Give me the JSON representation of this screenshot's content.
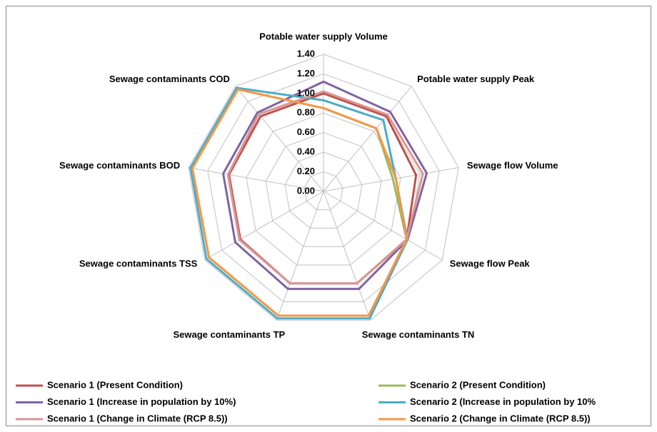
{
  "chart_data": {
    "type": "radar",
    "categories": [
      "Potable water supply Volume",
      "Potable water supply Peak",
      "Sewage flow Volume",
      "Sewage flow Peak",
      "Sewage contaminants TN",
      "Sewage contaminants TP",
      "Sewage contaminants TSS",
      "Sewage contaminants BOD",
      "Sewage contaminants COD"
    ],
    "rlim": [
      0,
      1.4
    ],
    "rticks": [
      {
        "value": 0,
        "label": "0.00"
      },
      {
        "value": 0.2,
        "label": "0.20"
      },
      {
        "value": 0.4,
        "label": "0.40"
      },
      {
        "value": 0.6,
        "label": "0.60"
      },
      {
        "value": 0.8,
        "label": "0.80"
      },
      {
        "value": 1,
        "label": "1.00"
      },
      {
        "value": 1.2,
        "label": "1.20"
      },
      {
        "value": 1.4,
        "label": "1.40"
      }
    ],
    "grid": true,
    "legend": "bottom",
    "series": [
      {
        "name": "Scenario 1 (Present Condition)",
        "color": "#c0504d",
        "values": [
          1.0,
          1.0,
          0.96,
          0.98,
          1.0,
          1.0,
          0.98,
          0.98,
          1.0
        ]
      },
      {
        "name": "Scenario 2 (Present Condition)",
        "color": "#9bbb59",
        "values": [
          0.85,
          0.84,
          0.72,
          0.98,
          1.35,
          1.35,
          1.35,
          1.36,
          1.36
        ]
      },
      {
        "name": "Scenario 1 (Increase in population by 10%)",
        "color": "#8064a2",
        "values": [
          1.12,
          1.06,
          1.07,
          0.99,
          1.06,
          1.06,
          1.04,
          1.04,
          1.05
        ]
      },
      {
        "name": "Scenario 2 (Increase in population by 10%",
        "color": "#4bacc6",
        "values": [
          0.93,
          0.95,
          0.75,
          0.99,
          1.38,
          1.38,
          1.38,
          1.38,
          1.38
        ]
      },
      {
        "name": "Scenario 1 (Change in Climate (RCP 8.5))",
        "color": "#d99694",
        "values": [
          1.02,
          1.02,
          1.03,
          0.98,
          1.0,
          1.0,
          0.99,
          0.99,
          1.03
        ]
      },
      {
        "name": "Scenario 2 (Change in Climate (RCP 8.5))",
        "color": "#f79646",
        "values": [
          0.85,
          0.84,
          0.75,
          0.98,
          1.35,
          1.35,
          1.35,
          1.36,
          1.36
        ]
      }
    ]
  }
}
